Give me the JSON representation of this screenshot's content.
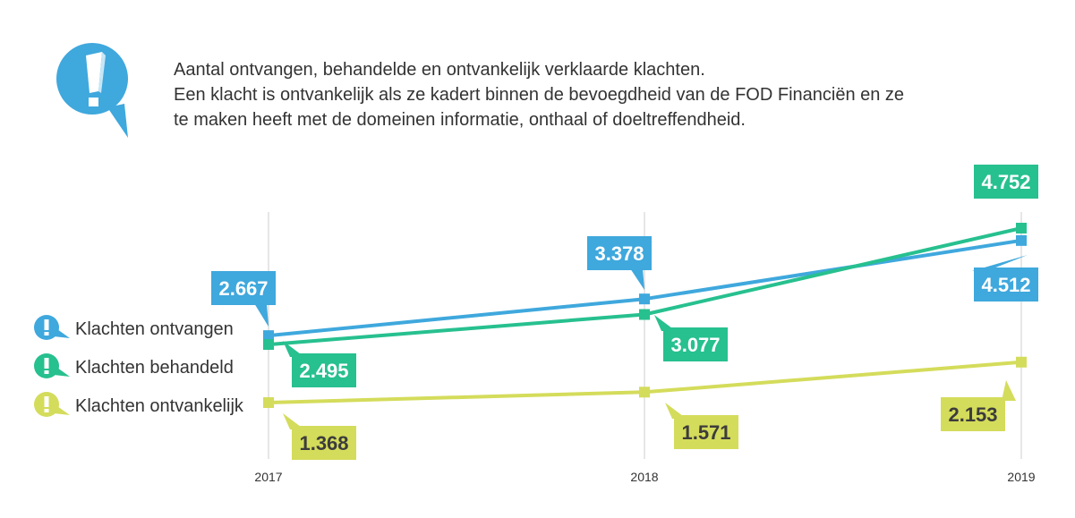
{
  "intro": {
    "lines": [
      "Aantal ontvangen, behandelde en ontvankelijk verklaarde klachten.",
      "Een klacht is ontvankelijk als ze kadert binnen de bevoegdheid van de FOD Financiën en ze",
      "te maken heeft met de domeinen informatie, onthaal of doeltreffendheid."
    ]
  },
  "chart_data": {
    "type": "line",
    "title": "",
    "xlabel": "",
    "ylabel": "",
    "x": [
      "2017",
      "2018",
      "2019"
    ],
    "ylim": [
      0,
      5000
    ],
    "legend_position": "left",
    "grid": "vertical",
    "series": [
      {
        "name": "Klachten ontvangen",
        "color": "#3fa8dd",
        "values": [
          2667,
          3378,
          4512
        ],
        "labels": [
          "2.667",
          "3.378",
          "4.512"
        ]
      },
      {
        "name": "Klachten behandeld",
        "color": "#27c08f",
        "values": [
          2495,
          3077,
          4752
        ],
        "labels": [
          "2.495",
          "3.077",
          "4.752"
        ]
      },
      {
        "name": "Klachten ontvankelijk",
        "color": "#d4dc5b",
        "values": [
          1368,
          1571,
          2153
        ],
        "labels": [
          "1.368",
          "1.571",
          "2.153"
        ]
      }
    ]
  },
  "icons": {
    "header": "exclamation-bubble-icon",
    "legend": "exclamation-bubble-icon"
  }
}
